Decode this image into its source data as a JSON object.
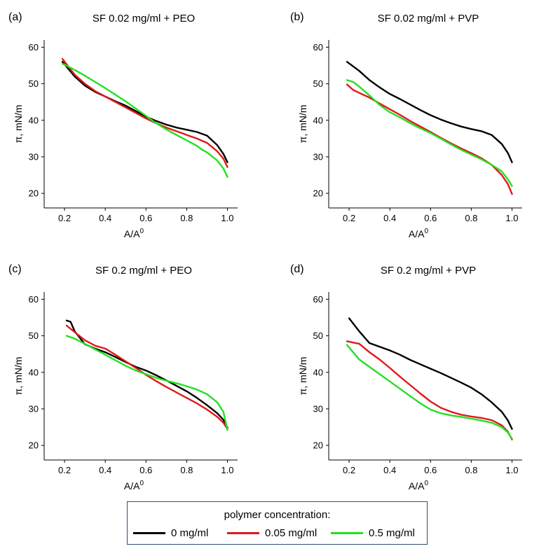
{
  "chart_data": [
    {
      "type": "line",
      "panel_label": "(a)",
      "title": "SF 0.02 mg/ml + PEO",
      "xlabel": "A/A0",
      "ylabel": "π, mN/m",
      "xlim": [
        0.1,
        1.05
      ],
      "ylim": [
        16,
        62
      ],
      "xticks": [
        0.2,
        0.4,
        0.6,
        0.8,
        1.0
      ],
      "xtick_labels": [
        "0.2",
        "0.4",
        "0.6",
        "0.8",
        "1.0"
      ],
      "yticks": [
        20,
        30,
        40,
        50,
        60
      ],
      "ytick_labels": [
        "20",
        "30",
        "40",
        "50",
        "60"
      ],
      "series": [
        {
          "name": "0 mg/ml",
          "color": "#000000",
          "x": [
            0.19,
            0.25,
            0.3,
            0.35,
            0.4,
            0.45,
            0.5,
            0.55,
            0.6,
            0.65,
            0.7,
            0.75,
            0.8,
            0.85,
            0.9,
            0.95,
            0.98,
            1.0
          ],
          "y": [
            56,
            52,
            49.5,
            47.8,
            46.5,
            45.2,
            44,
            42.5,
            41,
            39.8,
            38.8,
            38,
            37.4,
            36.8,
            35.8,
            33.2,
            30.8,
            28.5
          ]
        },
        {
          "name": "0.05 mg/ml",
          "color": "#e0191b",
          "x": [
            0.19,
            0.25,
            0.3,
            0.35,
            0.4,
            0.45,
            0.5,
            0.55,
            0.6,
            0.65,
            0.7,
            0.75,
            0.8,
            0.85,
            0.9,
            0.95,
            0.98,
            1.0
          ],
          "y": [
            56.8,
            52.5,
            50,
            48,
            46.5,
            45,
            43.5,
            42,
            40.5,
            39.2,
            38,
            37,
            36,
            35,
            33.8,
            31.5,
            29.5,
            27.2
          ]
        },
        {
          "name": "0.5 mg/ml",
          "color": "#22e022",
          "x": [
            0.19,
            0.25,
            0.3,
            0.35,
            0.4,
            0.45,
            0.5,
            0.55,
            0.6,
            0.65,
            0.7,
            0.75,
            0.8,
            0.85,
            0.88,
            0.9,
            0.95,
            0.98,
            1.0
          ],
          "y": [
            55.5,
            53.8,
            52.2,
            50.5,
            48.8,
            47,
            45.2,
            43.2,
            41.2,
            39.2,
            37.5,
            36,
            34.5,
            33,
            31.8,
            31.2,
            29,
            26.8,
            24.5
          ]
        }
      ]
    },
    {
      "type": "line",
      "panel_label": "(b)",
      "title": "SF 0.02 mg/ml + PVP",
      "xlabel": "A/A0",
      "ylabel": "π, mN/m",
      "xlim": [
        0.1,
        1.05
      ],
      "ylim": [
        16,
        62
      ],
      "xticks": [
        0.2,
        0.4,
        0.6,
        0.8,
        1.0
      ],
      "xtick_labels": [
        "0.2",
        "0.4",
        "0.6",
        "0.8",
        "1.0"
      ],
      "yticks": [
        20,
        30,
        40,
        50,
        60
      ],
      "ytick_labels": [
        "20",
        "30",
        "40",
        "50",
        "60"
      ],
      "series": [
        {
          "name": "0 mg/ml",
          "color": "#000000",
          "x": [
            0.19,
            0.25,
            0.3,
            0.35,
            0.4,
            0.45,
            0.5,
            0.55,
            0.6,
            0.65,
            0.7,
            0.75,
            0.8,
            0.85,
            0.9,
            0.95,
            0.98,
            1.0
          ],
          "y": [
            56,
            53.5,
            51,
            49,
            47.2,
            45.8,
            44.3,
            42.8,
            41.4,
            40.2,
            39.2,
            38.3,
            37.6,
            37,
            36,
            33.5,
            31,
            28.5
          ]
        },
        {
          "name": "0.05 mg/ml",
          "color": "#e0191b",
          "x": [
            0.19,
            0.22,
            0.25,
            0.3,
            0.35,
            0.4,
            0.45,
            0.5,
            0.55,
            0.6,
            0.65,
            0.7,
            0.75,
            0.8,
            0.85,
            0.9,
            0.95,
            0.98,
            1.0
          ],
          "y": [
            49.8,
            48.3,
            47.5,
            46.2,
            44.6,
            43,
            41.5,
            39.8,
            38.3,
            36.8,
            35.2,
            33.7,
            32.3,
            31,
            29.6,
            27.8,
            25,
            22.5,
            19.8
          ]
        },
        {
          "name": "0.5 mg/ml",
          "color": "#22e022",
          "x": [
            0.19,
            0.22,
            0.25,
            0.3,
            0.35,
            0.4,
            0.45,
            0.5,
            0.55,
            0.6,
            0.65,
            0.7,
            0.75,
            0.8,
            0.85,
            0.9,
            0.95,
            0.98,
            1.0
          ],
          "y": [
            51,
            50.5,
            49.2,
            46.8,
            44.2,
            42.2,
            40.8,
            39.2,
            37.8,
            36.5,
            35,
            33.4,
            31.9,
            30.6,
            29.3,
            27.8,
            26,
            23.8,
            22
          ]
        }
      ]
    },
    {
      "type": "line",
      "panel_label": "(c)",
      "title": "SF 0.2 mg/ml + PEO",
      "xlabel": "A/A0",
      "ylabel": "π, mN/m",
      "xlim": [
        0.1,
        1.05
      ],
      "ylim": [
        16,
        62
      ],
      "xticks": [
        0.2,
        0.4,
        0.6,
        0.8,
        1.0
      ],
      "xtick_labels": [
        "0.2",
        "0.4",
        "0.6",
        "0.8",
        "1.0"
      ],
      "yticks": [
        20,
        30,
        40,
        50,
        60
      ],
      "ytick_labels": [
        "20",
        "30",
        "40",
        "50",
        "60"
      ],
      "series": [
        {
          "name": "0 mg/ml",
          "color": "#000000",
          "x": [
            0.21,
            0.23,
            0.25,
            0.3,
            0.35,
            0.4,
            0.45,
            0.5,
            0.55,
            0.6,
            0.65,
            0.7,
            0.75,
            0.8,
            0.85,
            0.9,
            0.95,
            0.98,
            1.0
          ],
          "y": [
            54.2,
            53.8,
            51.2,
            47.7,
            46.5,
            45.5,
            44.2,
            42.8,
            41.5,
            40.5,
            39.2,
            37.8,
            36.3,
            34.8,
            33,
            31,
            28.8,
            27,
            24.8
          ]
        },
        {
          "name": "0.05 mg/ml",
          "color": "#e0191b",
          "x": [
            0.21,
            0.25,
            0.3,
            0.35,
            0.4,
            0.45,
            0.5,
            0.55,
            0.6,
            0.65,
            0.7,
            0.75,
            0.8,
            0.85,
            0.9,
            0.95,
            0.98,
            1.0
          ],
          "y": [
            52.8,
            51,
            48.8,
            47.3,
            46.5,
            44.8,
            43,
            41.2,
            39.3,
            37.6,
            36,
            34.5,
            33,
            31.5,
            29.8,
            27.8,
            26.2,
            24.5
          ]
        },
        {
          "name": "0.5 mg/ml",
          "color": "#22e022",
          "x": [
            0.21,
            0.25,
            0.3,
            0.35,
            0.4,
            0.45,
            0.5,
            0.55,
            0.6,
            0.65,
            0.7,
            0.75,
            0.8,
            0.85,
            0.9,
            0.95,
            0.98,
            1.0
          ],
          "y": [
            50,
            49.2,
            47.8,
            46.3,
            44.8,
            43.3,
            41.8,
            40.5,
            39.5,
            38.5,
            37.7,
            37,
            36.2,
            35.3,
            34,
            31.8,
            29.2,
            24.2
          ]
        }
      ]
    },
    {
      "type": "line",
      "panel_label": "(d)",
      "title": "SF 0.2 mg/ml + PVP",
      "xlabel": "A/A0",
      "ylabel": "π, mN/m",
      "xlim": [
        0.1,
        1.05
      ],
      "ylim": [
        16,
        62
      ],
      "xticks": [
        0.2,
        0.4,
        0.6,
        0.8,
        1.0
      ],
      "xtick_labels": [
        "0.2",
        "0.4",
        "0.6",
        "0.8",
        "1.0"
      ],
      "yticks": [
        20,
        30,
        40,
        50,
        60
      ],
      "ytick_labels": [
        "20",
        "30",
        "40",
        "50",
        "60"
      ],
      "series": [
        {
          "name": "0 mg/ml",
          "color": "#000000",
          "x": [
            0.2,
            0.25,
            0.3,
            0.35,
            0.4,
            0.45,
            0.5,
            0.55,
            0.6,
            0.65,
            0.7,
            0.75,
            0.8,
            0.85,
            0.9,
            0.95,
            0.98,
            1.0
          ],
          "y": [
            54.8,
            51.2,
            48,
            47,
            46,
            44.8,
            43.4,
            42.2,
            41,
            39.8,
            38.5,
            37.2,
            35.8,
            34,
            31.8,
            29.2,
            26.8,
            24.5
          ]
        },
        {
          "name": "0.05 mg/ml",
          "color": "#e0191b",
          "x": [
            0.19,
            0.25,
            0.3,
            0.35,
            0.4,
            0.45,
            0.5,
            0.55,
            0.6,
            0.65,
            0.7,
            0.75,
            0.8,
            0.85,
            0.9,
            0.95,
            0.98,
            1.0
          ],
          "y": [
            48.5,
            47.8,
            45.5,
            43.5,
            41.2,
            38.8,
            36.5,
            34.2,
            32,
            30.3,
            29.2,
            28.4,
            27.9,
            27.5,
            26.9,
            25.5,
            23.7,
            21.6
          ]
        },
        {
          "name": "0.5 mg/ml",
          "color": "#22e022",
          "x": [
            0.19,
            0.22,
            0.25,
            0.3,
            0.35,
            0.4,
            0.45,
            0.5,
            0.55,
            0.6,
            0.65,
            0.7,
            0.75,
            0.8,
            0.85,
            0.9,
            0.95,
            0.98,
            1.0
          ],
          "y": [
            47.5,
            45.5,
            43.5,
            41.5,
            39.5,
            37.5,
            35.5,
            33.5,
            31.5,
            29.8,
            28.8,
            28.2,
            27.8,
            27.3,
            26.8,
            26.2,
            25,
            23.5,
            21.8
          ]
        }
      ]
    }
  ],
  "legend": {
    "title": "polymer concentration:",
    "items": [
      {
        "label": "0 mg/ml",
        "color": "#000000"
      },
      {
        "label": "0.05 mg/ml",
        "color": "#e0191b"
      },
      {
        "label": "0.5 mg/ml",
        "color": "#22e022"
      }
    ]
  }
}
